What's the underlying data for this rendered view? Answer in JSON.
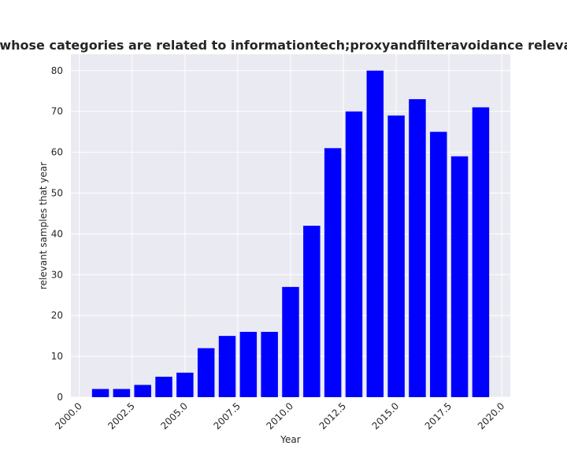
{
  "chart_data": {
    "type": "bar",
    "title": "Number of samples that year whose categories are related to informationtech;proxyandfilteravoidance relevant samples that year in privacy",
    "xlabel": "Year",
    "ylabel": "relevant samples that year",
    "x": [
      2001,
      2002,
      2003,
      2004,
      2005,
      2006,
      2007,
      2008,
      2009,
      2010,
      2011,
      2012,
      2013,
      2014,
      2015,
      2016,
      2017,
      2018,
      2019
    ],
    "values": [
      2,
      2,
      3,
      5,
      6,
      12,
      15,
      16,
      16,
      27,
      42,
      61,
      70,
      80,
      69,
      73,
      65,
      59,
      71
    ],
    "bar_width": 0.8,
    "xlim": [
      1999.6,
      2020.4
    ],
    "ylim": [
      0,
      84
    ],
    "xticks": [
      2000.0,
      2002.5,
      2005.0,
      2007.5,
      2010.0,
      2012.5,
      2015.0,
      2017.5,
      2020.0
    ],
    "xtick_labels": [
      "2000.0",
      "2002.5",
      "2005.0",
      "2007.5",
      "2010.0",
      "2012.5",
      "2015.0",
      "2017.5",
      "2020.0"
    ],
    "yticks": [
      0,
      10,
      20,
      30,
      40,
      50,
      60,
      70,
      80
    ],
    "ytick_labels": [
      "0",
      "10",
      "20",
      "30",
      "40",
      "50",
      "60",
      "70",
      "80"
    ],
    "grid": true,
    "colors": {
      "bar": "#0000ff",
      "plot_background": "#eaeaf2",
      "grid": "#ffffff",
      "text": "#262626"
    }
  }
}
